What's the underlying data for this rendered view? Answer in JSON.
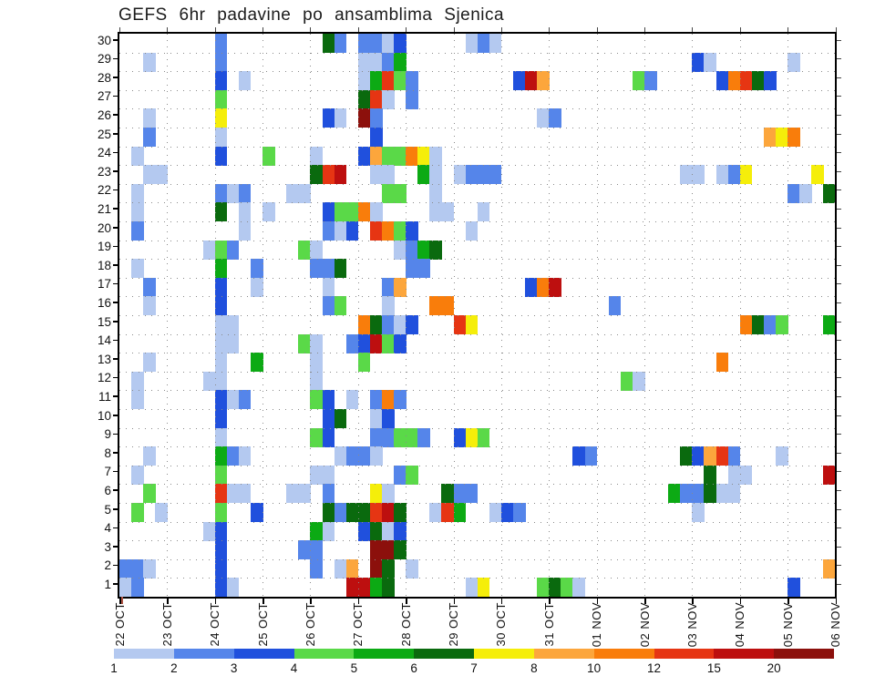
{
  "title": "GEFS 6hr padavine po ansamblima Sjenica",
  "chart_data": {
    "type": "heatmap",
    "title": "GEFS 6hr padavine po ansamblima Sjenica",
    "x_axis": {
      "description": "date, 4 six-hour cells per day",
      "tick_labels": [
        "22 OCT",
        "23 OCT",
        "24 OCT",
        "25 OCT",
        "26 OCT",
        "27 OCT",
        "28 OCT",
        "29 OCT",
        "30 OCT",
        "31 OCT",
        "01 NOV",
        "02 NOV",
        "03 NOV",
        "04 NOV",
        "05 NOV",
        "06 NOV"
      ],
      "columns": 60,
      "cells_per_day": 4
    },
    "y_axis": {
      "description": "ensemble member",
      "labels": [
        "30",
        "29",
        "28",
        "27",
        "26",
        "25",
        "24",
        "23",
        "22",
        "21",
        "20",
        "19",
        "18",
        "17",
        "16",
        "15",
        "14",
        "13",
        "12",
        "11",
        "10",
        "9",
        "8",
        "7",
        "6",
        "5",
        "4",
        "3",
        "2",
        "1"
      ]
    },
    "colorbar": {
      "values": [
        "1",
        "2",
        "3",
        "4",
        "5",
        "6",
        "7",
        "8",
        "10",
        "12",
        "15",
        "20"
      ],
      "colors": [
        "#b4c9f0",
        "#5585ea",
        "#2050dd",
        "#5ad948",
        "#0caa14",
        "#0a6a0e",
        "#f5ee0a",
        "#fca63c",
        "#f97d0b",
        "#e63513",
        "#bd0f0f",
        "#8c100c"
      ],
      "color_map": {
        "1": "#b4c9f0",
        "2": "#5585ea",
        "3": "#2050dd",
        "4": "#5ad948",
        "5": "#0caa14",
        "6": "#0a6a0e",
        "7": "#f5ee0a",
        "8": "#fca63c",
        "10": "#f97d0b",
        "12": "#e63513",
        "15": "#bd0f0f",
        "20": "#8c100c"
      },
      "grid_color": "#8a8a8a"
    },
    "cells": [
      [
        30,
        8,
        2
      ],
      [
        30,
        17,
        6
      ],
      [
        30,
        18,
        2
      ],
      [
        30,
        20,
        2
      ],
      [
        30,
        21,
        2
      ],
      [
        30,
        22,
        1
      ],
      [
        30,
        23,
        3
      ],
      [
        30,
        29,
        1
      ],
      [
        30,
        30,
        2
      ],
      [
        30,
        31,
        1
      ],
      [
        29,
        2,
        1
      ],
      [
        29,
        8,
        2
      ],
      [
        29,
        20,
        1
      ],
      [
        29,
        21,
        1
      ],
      [
        29,
        22,
        2
      ],
      [
        29,
        23,
        5
      ],
      [
        29,
        48,
        3
      ],
      [
        29,
        49,
        1
      ],
      [
        29,
        56,
        1
      ],
      [
        28,
        8,
        3
      ],
      [
        28,
        10,
        1
      ],
      [
        28,
        20,
        1
      ],
      [
        28,
        21,
        5
      ],
      [
        28,
        22,
        12
      ],
      [
        28,
        23,
        4
      ],
      [
        28,
        24,
        2
      ],
      [
        28,
        33,
        3
      ],
      [
        28,
        34,
        15
      ],
      [
        28,
        35,
        8
      ],
      [
        28,
        43,
        4
      ],
      [
        28,
        44,
        2
      ],
      [
        28,
        50,
        3
      ],
      [
        28,
        51,
        10
      ],
      [
        28,
        52,
        12
      ],
      [
        28,
        53,
        6
      ],
      [
        28,
        54,
        3
      ],
      [
        27,
        8,
        4
      ],
      [
        27,
        20,
        6
      ],
      [
        27,
        21,
        12
      ],
      [
        27,
        22,
        1
      ],
      [
        27,
        24,
        2
      ],
      [
        26,
        2,
        1
      ],
      [
        26,
        8,
        7
      ],
      [
        26,
        17,
        3
      ],
      [
        26,
        18,
        1
      ],
      [
        26,
        20,
        20
      ],
      [
        26,
        21,
        2
      ],
      [
        26,
        35,
        1
      ],
      [
        26,
        36,
        2
      ],
      [
        25,
        2,
        2
      ],
      [
        25,
        8,
        1
      ],
      [
        25,
        21,
        3
      ],
      [
        25,
        54,
        8
      ],
      [
        25,
        55,
        7
      ],
      [
        25,
        56,
        10
      ],
      [
        24,
        1,
        1
      ],
      [
        24,
        8,
        3
      ],
      [
        24,
        12,
        4
      ],
      [
        24,
        16,
        1
      ],
      [
        24,
        20,
        3
      ],
      [
        24,
        21,
        8
      ],
      [
        24,
        22,
        4
      ],
      [
        24,
        23,
        4
      ],
      [
        24,
        24,
        10
      ],
      [
        24,
        25,
        7
      ],
      [
        24,
        26,
        1
      ],
      [
        23,
        2,
        1
      ],
      [
        23,
        3,
        1
      ],
      [
        23,
        16,
        6
      ],
      [
        23,
        17,
        12
      ],
      [
        23,
        18,
        15
      ],
      [
        23,
        21,
        1
      ],
      [
        23,
        22,
        1
      ],
      [
        23,
        25,
        5
      ],
      [
        23,
        26,
        1
      ],
      [
        23,
        28,
        1
      ],
      [
        23,
        29,
        2
      ],
      [
        23,
        30,
        2
      ],
      [
        23,
        31,
        2
      ],
      [
        23,
        47,
        1
      ],
      [
        23,
        48,
        1
      ],
      [
        23,
        50,
        1
      ],
      [
        23,
        51,
        2
      ],
      [
        23,
        52,
        7
      ],
      [
        23,
        58,
        7
      ],
      [
        22,
        1,
        1
      ],
      [
        22,
        8,
        2
      ],
      [
        22,
        9,
        1
      ],
      [
        22,
        10,
        2
      ],
      [
        22,
        14,
        1
      ],
      [
        22,
        15,
        1
      ],
      [
        22,
        22,
        4
      ],
      [
        22,
        23,
        4
      ],
      [
        22,
        26,
        1
      ],
      [
        22,
        56,
        2
      ],
      [
        22,
        57,
        1
      ],
      [
        22,
        59,
        6
      ],
      [
        21,
        1,
        1
      ],
      [
        21,
        8,
        6
      ],
      [
        21,
        10,
        1
      ],
      [
        21,
        12,
        1
      ],
      [
        21,
        17,
        3
      ],
      [
        21,
        18,
        4
      ],
      [
        21,
        19,
        4
      ],
      [
        21,
        20,
        10
      ],
      [
        21,
        21,
        1
      ],
      [
        21,
        26,
        1
      ],
      [
        21,
        27,
        1
      ],
      [
        21,
        30,
        1
      ],
      [
        20,
        1,
        2
      ],
      [
        20,
        10,
        1
      ],
      [
        20,
        17,
        2
      ],
      [
        20,
        18,
        1
      ],
      [
        20,
        19,
        3
      ],
      [
        20,
        21,
        12
      ],
      [
        20,
        22,
        10
      ],
      [
        20,
        23,
        4
      ],
      [
        20,
        24,
        3
      ],
      [
        20,
        29,
        1
      ],
      [
        19,
        7,
        1
      ],
      [
        19,
        8,
        4
      ],
      [
        19,
        9,
        2
      ],
      [
        19,
        15,
        4
      ],
      [
        19,
        16,
        1
      ],
      [
        19,
        23,
        1
      ],
      [
        19,
        24,
        2
      ],
      [
        19,
        25,
        5
      ],
      [
        19,
        26,
        6
      ],
      [
        18,
        1,
        1
      ],
      [
        18,
        8,
        5
      ],
      [
        18,
        11,
        2
      ],
      [
        18,
        16,
        2
      ],
      [
        18,
        17,
        2
      ],
      [
        18,
        18,
        6
      ],
      [
        18,
        24,
        2
      ],
      [
        18,
        25,
        2
      ],
      [
        17,
        2,
        2
      ],
      [
        17,
        8,
        3
      ],
      [
        17,
        11,
        1
      ],
      [
        17,
        17,
        1
      ],
      [
        17,
        22,
        2
      ],
      [
        17,
        23,
        8
      ],
      [
        17,
        34,
        3
      ],
      [
        17,
        35,
        10
      ],
      [
        17,
        36,
        15
      ],
      [
        16,
        2,
        1
      ],
      [
        16,
        8,
        3
      ],
      [
        16,
        17,
        2
      ],
      [
        16,
        18,
        4
      ],
      [
        16,
        22,
        1
      ],
      [
        16,
        26,
        10
      ],
      [
        16,
        27,
        10
      ],
      [
        16,
        41,
        2
      ],
      [
        15,
        8,
        1
      ],
      [
        15,
        9,
        1
      ],
      [
        15,
        20,
        10
      ],
      [
        15,
        21,
        6
      ],
      [
        15,
        22,
        2
      ],
      [
        15,
        23,
        1
      ],
      [
        15,
        24,
        3
      ],
      [
        15,
        28,
        12
      ],
      [
        15,
        29,
        7
      ],
      [
        15,
        52,
        10
      ],
      [
        15,
        53,
        6
      ],
      [
        15,
        54,
        2
      ],
      [
        15,
        55,
        4
      ],
      [
        15,
        59,
        5
      ],
      [
        14,
        8,
        1
      ],
      [
        14,
        9,
        1
      ],
      [
        14,
        15,
        4
      ],
      [
        14,
        16,
        1
      ],
      [
        14,
        19,
        2
      ],
      [
        14,
        20,
        3
      ],
      [
        14,
        21,
        15
      ],
      [
        14,
        22,
        4
      ],
      [
        14,
        23,
        3
      ],
      [
        13,
        2,
        1
      ],
      [
        13,
        8,
        1
      ],
      [
        13,
        11,
        5
      ],
      [
        13,
        16,
        1
      ],
      [
        13,
        20,
        4
      ],
      [
        13,
        50,
        10
      ],
      [
        12,
        1,
        1
      ],
      [
        12,
        7,
        1
      ],
      [
        12,
        8,
        1
      ],
      [
        12,
        16,
        1
      ],
      [
        12,
        42,
        4
      ],
      [
        12,
        43,
        1
      ],
      [
        11,
        1,
        1
      ],
      [
        11,
        8,
        3
      ],
      [
        11,
        9,
        1
      ],
      [
        11,
        10,
        2
      ],
      [
        11,
        16,
        4
      ],
      [
        11,
        17,
        3
      ],
      [
        11,
        19,
        1
      ],
      [
        11,
        21,
        2
      ],
      [
        11,
        22,
        10
      ],
      [
        11,
        23,
        2
      ],
      [
        10,
        8,
        3
      ],
      [
        10,
        17,
        3
      ],
      [
        10,
        18,
        6
      ],
      [
        10,
        21,
        1
      ],
      [
        10,
        22,
        3
      ],
      [
        9,
        8,
        1
      ],
      [
        9,
        16,
        4
      ],
      [
        9,
        17,
        3
      ],
      [
        9,
        21,
        2
      ],
      [
        9,
        22,
        2
      ],
      [
        9,
        23,
        4
      ],
      [
        9,
        24,
        4
      ],
      [
        9,
        25,
        2
      ],
      [
        9,
        28,
        3
      ],
      [
        9,
        29,
        7
      ],
      [
        9,
        30,
        4
      ],
      [
        8,
        2,
        1
      ],
      [
        8,
        8,
        5
      ],
      [
        8,
        9,
        2
      ],
      [
        8,
        10,
        1
      ],
      [
        8,
        18,
        1
      ],
      [
        8,
        19,
        2
      ],
      [
        8,
        20,
        2
      ],
      [
        8,
        21,
        1
      ],
      [
        8,
        38,
        3
      ],
      [
        8,
        39,
        2
      ],
      [
        8,
        47,
        6
      ],
      [
        8,
        48,
        3
      ],
      [
        8,
        49,
        8
      ],
      [
        8,
        50,
        12
      ],
      [
        8,
        51,
        2
      ],
      [
        8,
        55,
        1
      ],
      [
        7,
        1,
        1
      ],
      [
        7,
        8,
        4
      ],
      [
        7,
        16,
        1
      ],
      [
        7,
        17,
        1
      ],
      [
        7,
        23,
        2
      ],
      [
        7,
        24,
        4
      ],
      [
        7,
        49,
        6
      ],
      [
        7,
        51,
        1
      ],
      [
        7,
        52,
        1
      ],
      [
        7,
        59,
        15
      ],
      [
        6,
        2,
        4
      ],
      [
        6,
        8,
        12
      ],
      [
        6,
        9,
        1
      ],
      [
        6,
        10,
        1
      ],
      [
        6,
        14,
        1
      ],
      [
        6,
        15,
        1
      ],
      [
        6,
        17,
        2
      ],
      [
        6,
        21,
        7
      ],
      [
        6,
        22,
        1
      ],
      [
        6,
        27,
        6
      ],
      [
        6,
        28,
        2
      ],
      [
        6,
        29,
        2
      ],
      [
        6,
        46,
        5
      ],
      [
        6,
        47,
        2
      ],
      [
        6,
        48,
        2
      ],
      [
        6,
        49,
        6
      ],
      [
        6,
        50,
        1
      ],
      [
        6,
        51,
        1
      ],
      [
        5,
        1,
        4
      ],
      [
        5,
        3,
        1
      ],
      [
        5,
        8,
        4
      ],
      [
        5,
        11,
        3
      ],
      [
        5,
        17,
        6
      ],
      [
        5,
        18,
        2
      ],
      [
        5,
        19,
        6
      ],
      [
        5,
        20,
        6
      ],
      [
        5,
        21,
        12
      ],
      [
        5,
        22,
        15
      ],
      [
        5,
        23,
        6
      ],
      [
        5,
        26,
        1
      ],
      [
        5,
        27,
        12
      ],
      [
        5,
        28,
        5
      ],
      [
        5,
        31,
        1
      ],
      [
        5,
        32,
        3
      ],
      [
        5,
        33,
        2
      ],
      [
        5,
        48,
        1
      ],
      [
        4,
        7,
        1
      ],
      [
        4,
        8,
        3
      ],
      [
        4,
        16,
        5
      ],
      [
        4,
        17,
        1
      ],
      [
        4,
        20,
        3
      ],
      [
        4,
        21,
        6
      ],
      [
        4,
        22,
        1
      ],
      [
        4,
        23,
        3
      ],
      [
        3,
        8,
        3
      ],
      [
        3,
        15,
        2
      ],
      [
        3,
        16,
        2
      ],
      [
        3,
        21,
        20
      ],
      [
        3,
        22,
        20
      ],
      [
        3,
        23,
        6
      ],
      [
        2,
        0,
        2
      ],
      [
        2,
        1,
        2
      ],
      [
        2,
        2,
        1
      ],
      [
        2,
        8,
        3
      ],
      [
        2,
        16,
        2
      ],
      [
        2,
        18,
        1
      ],
      [
        2,
        19,
        8
      ],
      [
        2,
        21,
        20
      ],
      [
        2,
        22,
        6
      ],
      [
        2,
        24,
        1
      ],
      [
        2,
        59,
        8
      ],
      [
        1,
        0,
        1
      ],
      [
        1,
        1,
        2
      ],
      [
        1,
        8,
        3
      ],
      [
        1,
        9,
        1
      ],
      [
        1,
        19,
        15
      ],
      [
        1,
        20,
        15
      ],
      [
        1,
        21,
        5
      ],
      [
        1,
        22,
        6
      ],
      [
        1,
        29,
        1
      ],
      [
        1,
        30,
        7
      ],
      [
        1,
        35,
        4
      ],
      [
        1,
        36,
        6
      ],
      [
        1,
        37,
        4
      ],
      [
        1,
        38,
        1
      ],
      [
        1,
        56,
        3
      ]
    ]
  }
}
